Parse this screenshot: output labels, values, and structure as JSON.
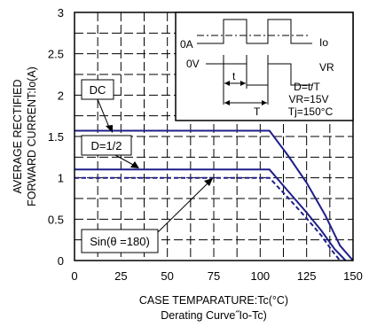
{
  "chart_data": {
    "type": "line",
    "title": "",
    "xlabel": "CASE TEMPARATURE:Tc(°C)",
    "ylabel_lines": [
      "AVERAGE RECTIFIED",
      "FORWARD CURRENT:Io(A)"
    ],
    "caption": "Derating Curve˝Io-Tc)",
    "xlim": [
      0,
      150
    ],
    "ylim": [
      0,
      3
    ],
    "x_ticks": [
      "0",
      "25",
      "50",
      "75",
      "100",
      "125",
      "150"
    ],
    "y_ticks": [
      "0",
      "0.5",
      "1",
      "1.5",
      "2",
      "2.5",
      "3"
    ],
    "grid": true,
    "series": [
      {
        "name": "DC",
        "style": "solid",
        "x": [
          0,
          105,
          115,
          125,
          135,
          143,
          150
        ],
        "y": [
          1.57,
          1.57,
          1.27,
          0.94,
          0.55,
          0.18,
          0
        ]
      },
      {
        "name": "D=1/2",
        "style": "solid",
        "x": [
          0,
          105,
          115,
          125,
          133,
          140,
          146
        ],
        "y": [
          1.1,
          1.1,
          0.84,
          0.58,
          0.36,
          0.14,
          0
        ]
      },
      {
        "name": "Sin(θ =180)",
        "style": "dashed",
        "x": [
          0,
          105,
          115,
          125,
          133,
          139,
          143
        ],
        "y": [
          1.0,
          1.0,
          0.76,
          0.51,
          0.3,
          0.11,
          0
        ]
      }
    ],
    "annotations": {
      "inset": {
        "label_0A": "0A",
        "label_0V": "0V",
        "label_Io": "Io",
        "label_VR": "VR",
        "label_t": "t",
        "label_T": "T",
        "cond1": "D=t/T",
        "cond2": "VR=15V",
        "cond3": "Tj=150°C"
      }
    }
  },
  "colors": {
    "curve": "#1f1f8a",
    "axis": "#000000",
    "grid": "#000000"
  }
}
